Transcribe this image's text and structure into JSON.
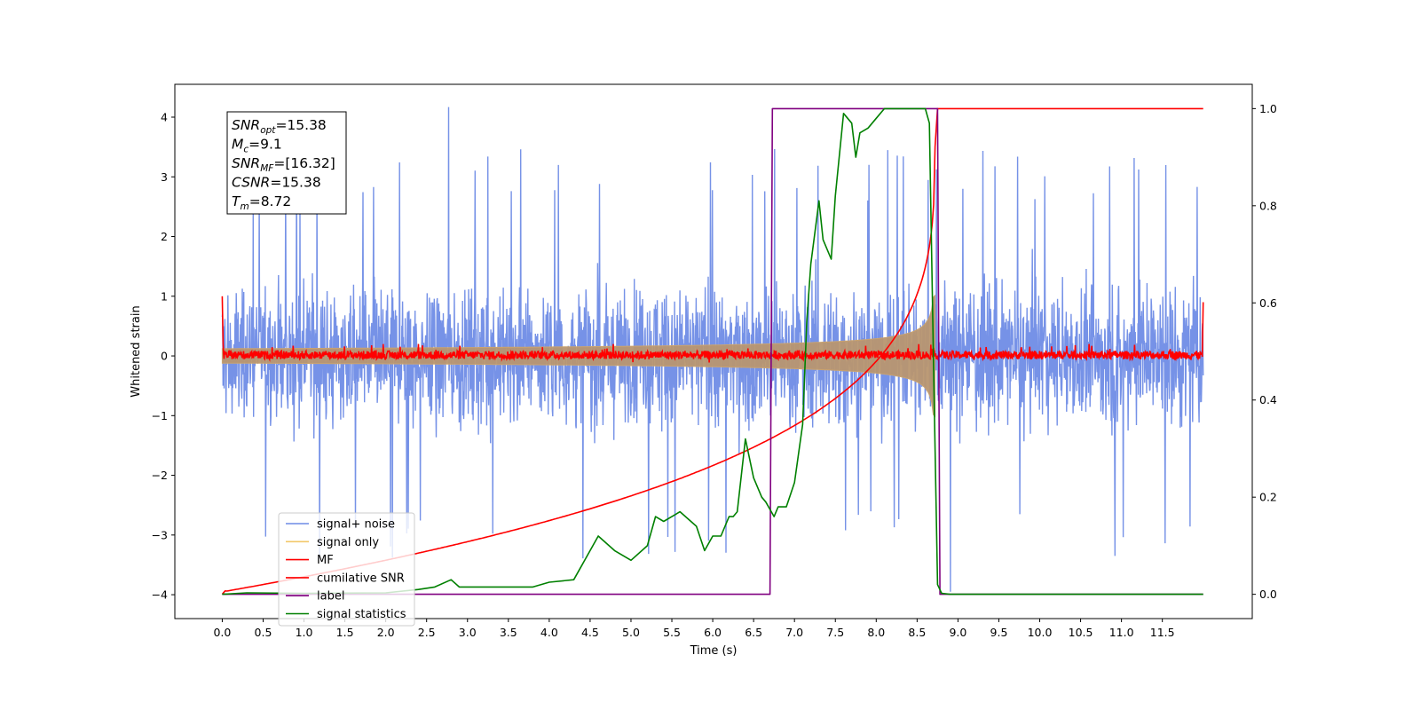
{
  "chart_data": {
    "type": "line",
    "title": "",
    "xlabel": "Time (s)",
    "ylabel": "Whitened strain",
    "ylabel_right": "",
    "xlim": [
      -0.58,
      12.6
    ],
    "ylim": [
      -4.4,
      4.55
    ],
    "ylim_right": [
      -0.05,
      1.05
    ],
    "x_ticks": [
      "0.0",
      "0.5",
      "1.0",
      "1.5",
      "2.0",
      "2.5",
      "3.0",
      "3.5",
      "4.0",
      "4.5",
      "5.0",
      "5.5",
      "6.0",
      "6.5",
      "7.0",
      "7.5",
      "8.0",
      "8.5",
      "9.0",
      "9.5",
      "10.0",
      "10.5",
      "11.0",
      "11.5"
    ],
    "y_ticks": [
      "−4",
      "−3",
      "−2",
      "−1",
      "0",
      "1",
      "2",
      "3",
      "4"
    ],
    "y_ticks_right": [
      "0.0",
      "0.2",
      "0.4",
      "0.6",
      "0.8",
      "1.0"
    ],
    "grid": false,
    "legend_position": "lower-left",
    "annotation": {
      "lines": [
        {
          "main": "SNR",
          "sub": "opt",
          "rest": "=15.38"
        },
        {
          "main": "M",
          "sub": "c",
          "rest": "=9.1"
        },
        {
          "main": "SNR",
          "sub": "MF",
          "rest": "=[16.32]"
        },
        {
          "main": "CSNR",
          "sub": "",
          "rest": "=15.38"
        },
        {
          "main": "T",
          "sub": "m",
          "rest": "=8.72"
        }
      ]
    },
    "series": [
      {
        "name": "signal+ noise",
        "axis": "left",
        "color": "#6f8ce6",
        "kind": "noise",
        "x_range": [
          0.0,
          12.0
        ],
        "amplitude_band": [
          -2.3,
          2.3
        ],
        "peak_max": 4.17,
        "peak_min": -3.95
      },
      {
        "name": "signal only",
        "axis": "left",
        "color": "#f2c86a",
        "kind": "chirp",
        "x_range": [
          0.0,
          8.72
        ],
        "peak_amplitude": 1.2
      },
      {
        "name": "MF",
        "axis": "left",
        "color": "#ff0000",
        "kind": "mf",
        "x_range": [
          0.0,
          12.0
        ],
        "start": 1.0,
        "end": 0.9,
        "noise_band": [
          -0.12,
          0.15
        ]
      },
      {
        "name": "cumilative SNR",
        "axis": "right",
        "color": "#ff0000",
        "x": [
          0.0,
          0.1,
          1.0,
          2.0,
          3.0,
          4.0,
          5.0,
          6.0,
          7.0,
          7.5,
          8.0,
          8.3,
          8.5,
          8.6,
          8.65,
          8.7,
          8.72,
          8.75,
          12.0
        ],
        "values": [
          0.0,
          0.01,
          0.05,
          0.08,
          0.12,
          0.16,
          0.2,
          0.25,
          0.33,
          0.39,
          0.48,
          0.58,
          0.7,
          0.8,
          0.87,
          0.95,
          1.0,
          1.0,
          1.0
        ]
      },
      {
        "name": "label",
        "axis": "right",
        "color": "#800080",
        "x": [
          0.0,
          6.7,
          6.73,
          8.75,
          8.78,
          12.0
        ],
        "values": [
          0.0,
          0.0,
          1.0,
          1.0,
          0.0,
          0.0
        ]
      },
      {
        "name": "signal statistics",
        "axis": "right",
        "color": "#008000",
        "x": [
          0.0,
          0.3,
          1.0,
          2.0,
          2.4,
          2.6,
          2.8,
          2.9,
          3.2,
          3.5,
          3.8,
          4.0,
          4.3,
          4.4,
          4.6,
          4.8,
          5.0,
          5.2,
          5.3,
          5.4,
          5.5,
          5.6,
          5.8,
          5.9,
          6.0,
          6.1,
          6.2,
          6.25,
          6.3,
          6.4,
          6.5,
          6.6,
          6.65,
          6.75,
          6.8,
          6.9,
          7.0,
          7.1,
          7.15,
          7.2,
          7.3,
          7.35,
          7.45,
          7.5,
          7.6,
          7.7,
          7.75,
          7.8,
          7.9,
          8.0,
          8.1,
          8.3,
          8.5,
          8.6,
          8.65,
          8.7,
          8.75,
          8.8,
          8.9,
          12.0
        ],
        "values": [
          0.0,
          0.003,
          0.002,
          0.003,
          0.01,
          0.015,
          0.03,
          0.015,
          0.015,
          0.015,
          0.015,
          0.025,
          0.03,
          0.06,
          0.12,
          0.09,
          0.07,
          0.1,
          0.16,
          0.15,
          0.16,
          0.17,
          0.14,
          0.09,
          0.12,
          0.12,
          0.16,
          0.16,
          0.17,
          0.32,
          0.24,
          0.2,
          0.19,
          0.16,
          0.18,
          0.18,
          0.23,
          0.35,
          0.56,
          0.68,
          0.81,
          0.73,
          0.69,
          0.82,
          0.99,
          0.97,
          0.9,
          0.95,
          0.96,
          0.98,
          1.0,
          1.0,
          1.0,
          1.0,
          0.97,
          0.48,
          0.02,
          0.002,
          0.0,
          0.0
        ]
      }
    ]
  }
}
